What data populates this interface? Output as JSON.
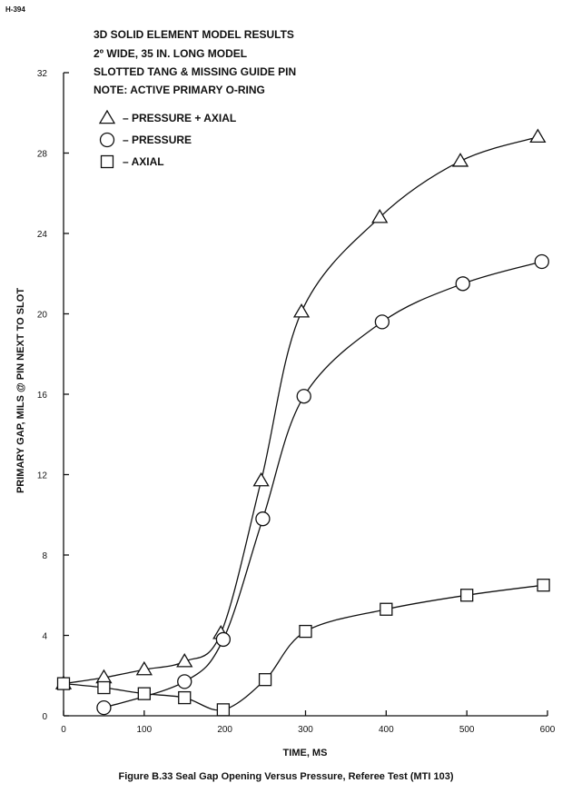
{
  "page_code": "H-394",
  "caption": "Figure B.33 Seal Gap Opening Versus Pressure, Referee Test (MTI 103)",
  "notes": [
    "3D SOLID ELEMENT MODEL RESULTS",
    "2º WIDE, 35 IN. LONG MODEL",
    "SLOTTED TANG & MISSING GUIDE PIN",
    "NOTE:  ACTIVE PRIMARY O-RING"
  ],
  "chart_data": {
    "type": "line",
    "xlabel": "TIME, MS",
    "ylabel": "PRIMARY GAP, MILS @ PIN NEXT TO SLOT",
    "xlim": [
      0,
      600
    ],
    "ylim": [
      0,
      32
    ],
    "xticks": [
      0,
      100,
      200,
      300,
      400,
      500,
      600
    ],
    "yticks": [
      0,
      4,
      8,
      12,
      16,
      20,
      24,
      28,
      32
    ],
    "grid": false,
    "legend_position": "top-left",
    "series": [
      {
        "name": "PRESSURE + AXIAL",
        "marker": "triangle",
        "x": [
          0,
          50,
          100,
          150,
          195,
          245,
          295,
          392,
          492,
          588
        ],
        "y": [
          1.6,
          1.9,
          2.3,
          2.7,
          4.1,
          11.7,
          20.1,
          24.8,
          27.6,
          28.8
        ]
      },
      {
        "name": "PRESSURE",
        "marker": "circle",
        "x": [
          50,
          150,
          198,
          247,
          298,
          395,
          495,
          593
        ],
        "y": [
          0.4,
          1.7,
          3.8,
          9.8,
          15.9,
          19.6,
          21.5,
          22.6
        ]
      },
      {
        "name": "AXIAL",
        "marker": "square",
        "x": [
          0,
          50,
          100,
          150,
          198,
          250,
          300,
          400,
          500,
          595
        ],
        "y": [
          1.6,
          1.4,
          1.1,
          0.9,
          0.3,
          1.8,
          4.2,
          5.3,
          6.0,
          6.5
        ]
      }
    ]
  }
}
